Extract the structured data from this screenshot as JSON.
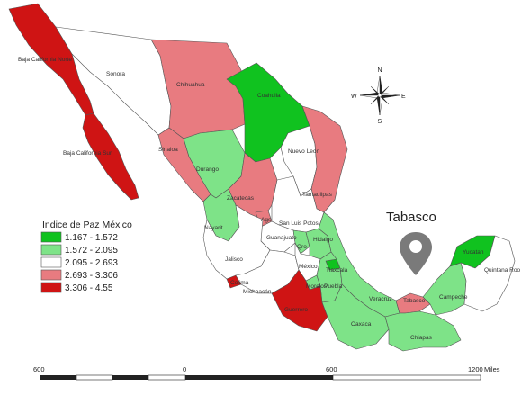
{
  "colors": {
    "c1": "#10c21f",
    "c2": "#53d15e",
    "c3": "#7ee388",
    "c4": "#ffffff",
    "c5": "#e87b80",
    "c6": "#cf1414",
    "border": "#555555",
    "pin": "#7a7a7a"
  },
  "legend": {
    "title": "Indice de Paz México",
    "items": [
      {
        "label": "1.167 - 1.572",
        "color": "#10c21f"
      },
      {
        "label": "1.572 - 2.095",
        "color": "#7ee388"
      },
      {
        "label": "2.095 - 2.693",
        "color": "#ffffff"
      },
      {
        "label": "2.693 - 3.306",
        "color": "#e87b80"
      },
      {
        "label": "3.306 - 4.55",
        "color": "#cf1414"
      }
    ]
  },
  "states": {
    "baja_california_norte": "Baja California Norte",
    "baja_california_sur": "Baja California Sur",
    "sonora": "Sonora",
    "chihuahua": "Chihuahua",
    "coahuila": "Coahuila",
    "nuevo_leon": "Nuevo Leon",
    "tamaulipas": "Tamaulipas",
    "sinaloa": "Sinaloa",
    "durango": "Durango",
    "zacatecas": "Zacatecas",
    "nayarit": "Nayarit",
    "aguascalientes": "Ags",
    "san_luis_potosi": "San Luis Potosi",
    "guanajuato": "Guanajuato",
    "queretaro": "Qro",
    "hidalgo": "Hidalgo",
    "jalisco": "Jalisco",
    "colima": "Colima",
    "michoacan": "Michoacán",
    "mexico": "México",
    "tlaxcala": "Tlaxcala",
    "puebla": "Puebla",
    "morelos": "Morelos",
    "guerrero": "Guerrero",
    "oaxaca": "Oaxaca",
    "veracruz": "Veracruz",
    "tabasco": "Tabasco",
    "chiapas": "Chiapas",
    "campeche": "Campeche",
    "yucatan": "Yucatan",
    "quintana_roo": "Quintana Roo"
  },
  "pin_label": "Tabasco",
  "compass": {
    "n": "N",
    "s": "S",
    "e": "E",
    "w": "W"
  },
  "scale": {
    "ticks": [
      "600",
      "0",
      "600",
      "1200"
    ],
    "unit": "Miles"
  }
}
